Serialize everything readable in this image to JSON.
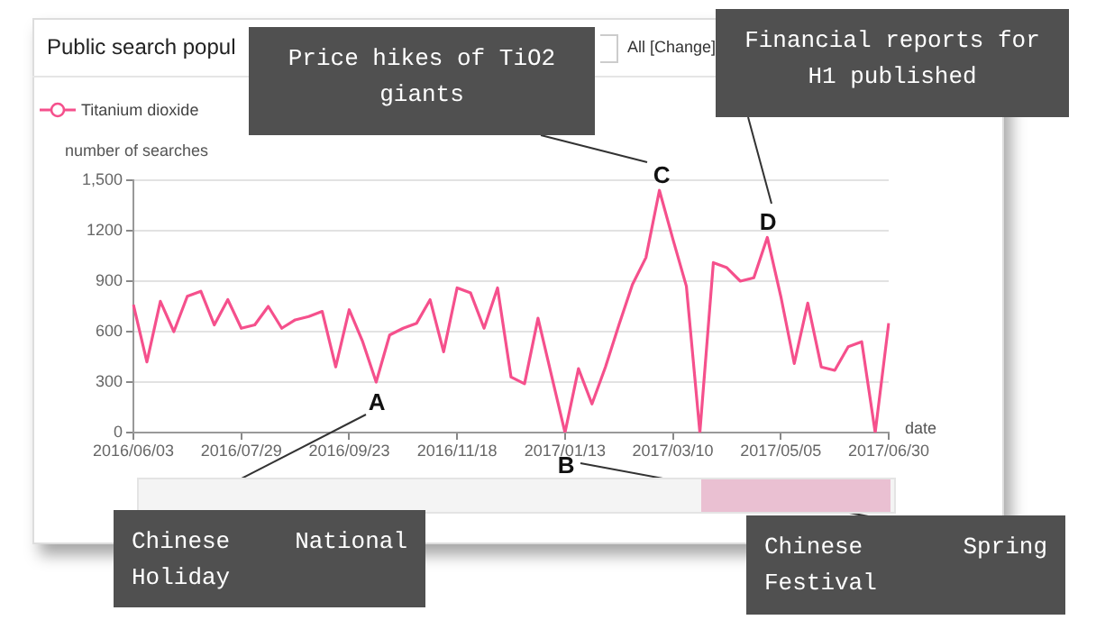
{
  "chart_data": {
    "type": "line",
    "title": "Public search popul",
    "subtitle": "All [Change]",
    "xlabel": "date",
    "ylabel": "number of searches",
    "categories": [
      "2016/06/03",
      null,
      null,
      null,
      null,
      null,
      null,
      null,
      "2016/07/29",
      null,
      null,
      null,
      null,
      null,
      null,
      null,
      "2016/09/23",
      null,
      null,
      null,
      null,
      null,
      null,
      null,
      "2016/11/18",
      null,
      null,
      null,
      null,
      null,
      null,
      null,
      "2017/01/13",
      null,
      null,
      null,
      null,
      null,
      null,
      null,
      "2017/03/10",
      null,
      null,
      null,
      null,
      null,
      null,
      null,
      "2017/05/05",
      null,
      null,
      null,
      null,
      null,
      null,
      null,
      "2017/06/30"
    ],
    "series": [
      {
        "name": "Titanium dioxide",
        "color": "#f5508c",
        "values": [
          760,
          420,
          780,
          600,
          810,
          840,
          640,
          790,
          620,
          640,
          750,
          620,
          670,
          690,
          720,
          390,
          730,
          540,
          300,
          580,
          620,
          650,
          790,
          480,
          860,
          830,
          620,
          860,
          330,
          290,
          680,
          340,
          0,
          380,
          170,
          390,
          640,
          880,
          1040,
          1440,
          1150,
          870,
          0,
          1010,
          980,
          900,
          920,
          1160,
          810,
          410,
          770,
          390,
          370,
          510,
          540,
          0,
          650
        ]
      }
    ],
    "ylim": [
      0,
      1500
    ],
    "yticks": [
      0,
      300,
      600,
      900,
      1200,
      {
        "value": 1500,
        "label": "1,500"
      }
    ],
    "grid": "y",
    "legend": "top left",
    "line_style": "solid",
    "annotations": [
      "A",
      "B",
      "C",
      "D",
      "Price hikes of TiO2 giants",
      "Financial reports for H1 published",
      "Chinese National Holiday",
      "Chinese Spring Festival"
    ]
  }
}
